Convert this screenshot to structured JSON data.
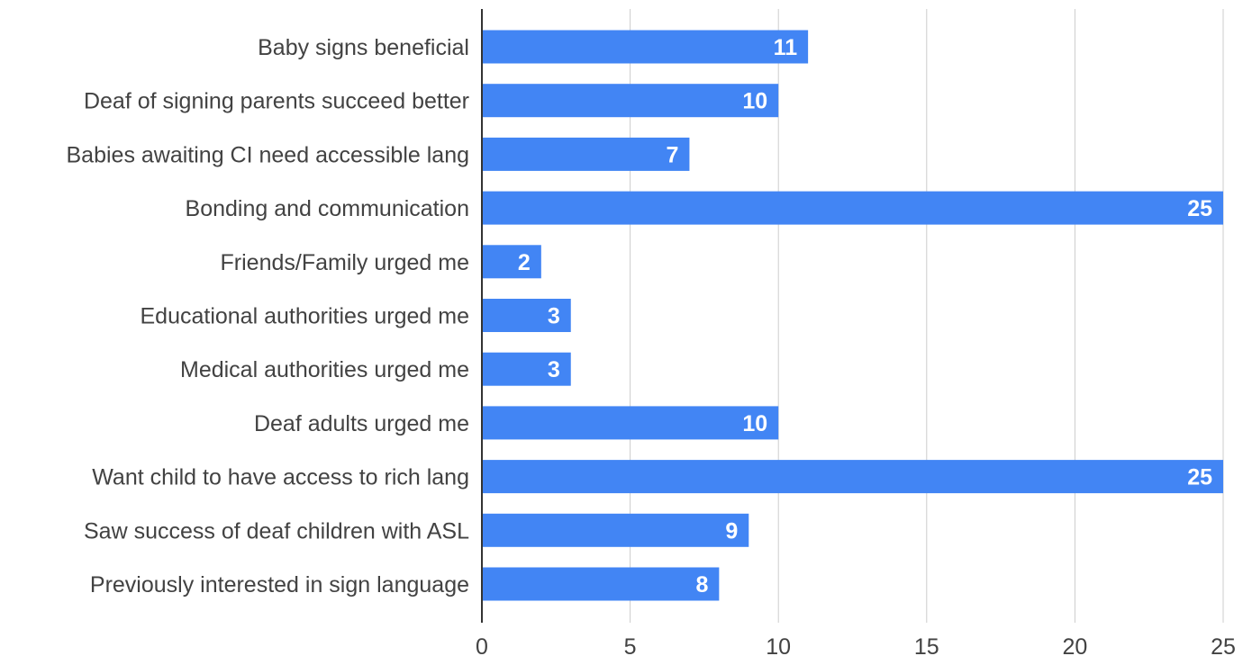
{
  "chart_data": {
    "type": "bar",
    "orientation": "horizontal",
    "categories": [
      "Baby signs beneficial",
      "Deaf of signing parents succeed better",
      "Babies awaiting CI need accessible lang",
      "Bonding and communication",
      "Friends/Family urged me",
      "Educational authorities urged me",
      "Medical authorities urged me",
      "Deaf adults urged me",
      "Want child to have access to rich lang",
      "Saw success of deaf children with ASL",
      "Previously interested in sign language"
    ],
    "values": [
      11,
      10,
      7,
      25,
      2,
      3,
      3,
      10,
      25,
      9,
      8
    ],
    "title": "",
    "xlabel": "",
    "ylabel": "",
    "xlim": [
      0,
      25
    ],
    "x_ticks": [
      0,
      5,
      10,
      15,
      20,
      25
    ],
    "grid": "vertical",
    "legend": "none",
    "data_labels": "inside-end",
    "colors": {
      "bar": "#4285f4",
      "gridline": "#cccccc",
      "axis": "#333333",
      "label_text": "#424242",
      "value_text": "#ffffff"
    }
  }
}
